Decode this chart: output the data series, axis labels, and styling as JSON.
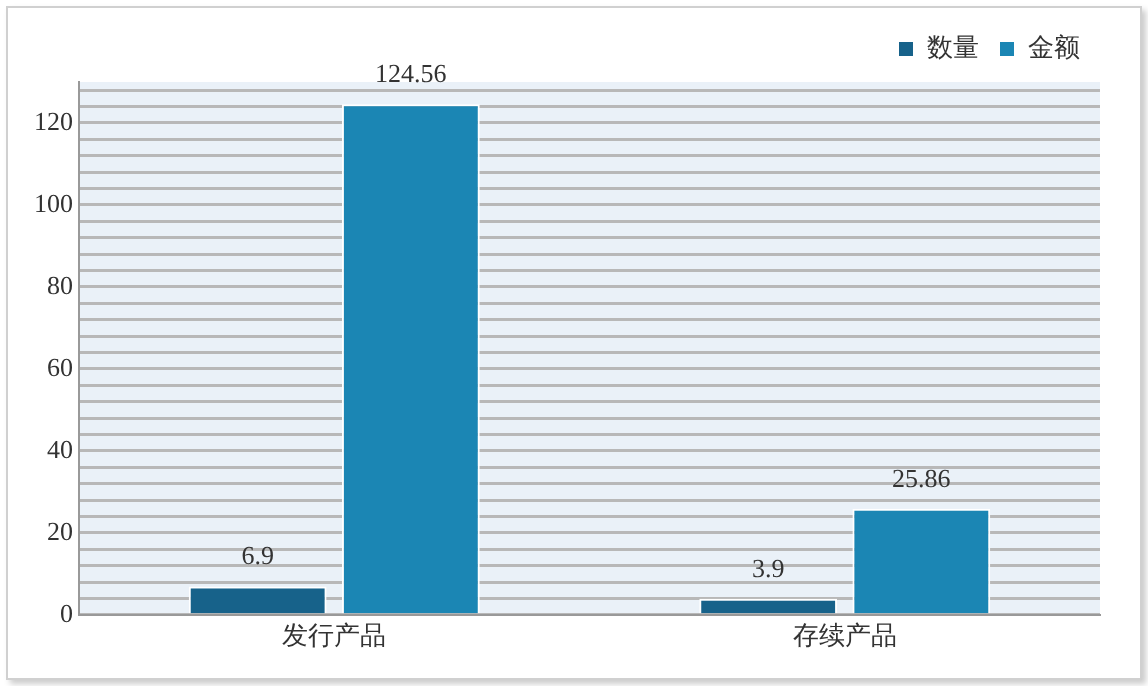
{
  "chart_data": {
    "type": "bar",
    "categories": [
      "发行产品",
      "存续产品"
    ],
    "series": [
      {
        "name": "数量",
        "color": "#17628a",
        "values": [
          6.9,
          3.9
        ]
      },
      {
        "name": "金额",
        "color": "#1b86b4",
        "values": [
          124.56,
          25.86
        ]
      }
    ],
    "ylim": [
      0,
      130
    ],
    "yticks": [
      0,
      {
        "value": 4,
        "label": null
      },
      {
        "value": 8,
        "label": null
      },
      {
        "value": 12,
        "label": null
      },
      {
        "value": 16,
        "label": null
      },
      20,
      {
        "value": 24,
        "label": null
      },
      {
        "value": 28,
        "label": null
      },
      {
        "value": 32,
        "label": null
      },
      {
        "value": 36,
        "label": null
      },
      40,
      {
        "value": 44,
        "label": null
      },
      {
        "value": 48,
        "label": null
      },
      {
        "value": 52,
        "label": null
      },
      {
        "value": 56,
        "label": null
      },
      60,
      {
        "value": 64,
        "label": null
      },
      {
        "value": 68,
        "label": null
      },
      {
        "value": 72,
        "label": null
      },
      {
        "value": 76,
        "label": null
      },
      80,
      {
        "value": 84,
        "label": null
      },
      {
        "value": 88,
        "label": null
      },
      {
        "value": 92,
        "label": null
      },
      {
        "value": 96,
        "label": null
      },
      100,
      {
        "value": 104,
        "label": null
      },
      {
        "value": 108,
        "label": null
      },
      {
        "value": 112,
        "label": null
      },
      {
        "value": 116,
        "label": null
      },
      120,
      {
        "value": 124,
        "label": null
      },
      {
        "value": 128,
        "label": null
      }
    ],
    "grid": "y",
    "legend": "top right",
    "data_labels": true
  }
}
